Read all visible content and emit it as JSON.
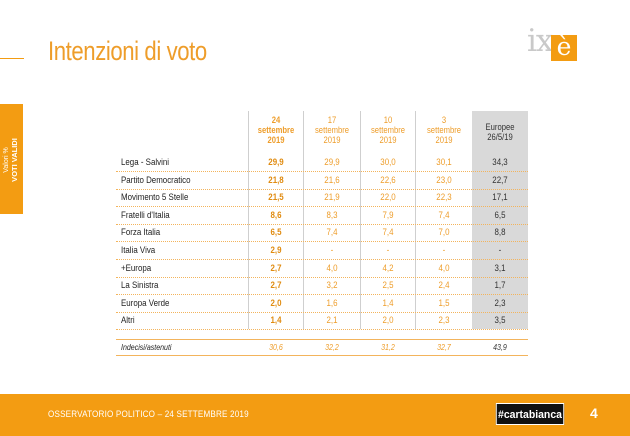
{
  "header": {
    "title": "Intenzioni di voto"
  },
  "logo": {
    "text": "ix",
    "box_letter": "è"
  },
  "side_tab": {
    "line1": "Valori %",
    "line2": "VOTI VALIDI"
  },
  "table": {
    "columns": [
      {
        "l1": "24",
        "l2": "settembre",
        "l3": "2019"
      },
      {
        "l1": "17",
        "l2": "settembre",
        "l3": "2019"
      },
      {
        "l1": "10",
        "l2": "settembre",
        "l3": "2019"
      },
      {
        "l1": "3",
        "l2": "settembre",
        "l3": "2019"
      },
      {
        "l1": "Europee",
        "l2": "26/5/19",
        "l3": ""
      }
    ],
    "rows": [
      {
        "label": "Lega - Salvini",
        "values": [
          "29,9",
          "29,9",
          "30,0",
          "30,1",
          "34,3"
        ]
      },
      {
        "label": "Partito Democratico",
        "values": [
          "21,8",
          "21,6",
          "22,6",
          "23,0",
          "22,7"
        ]
      },
      {
        "label": "Movimento 5 Stelle",
        "values": [
          "21,5",
          "21,9",
          "22,0",
          "22,3",
          "17,1"
        ]
      },
      {
        "label": "Fratelli d'Italia",
        "values": [
          "8,6",
          "8,3",
          "7,9",
          "7,4",
          "6,5"
        ]
      },
      {
        "label": "Forza Italia",
        "values": [
          "6,5",
          "7,4",
          "7,4",
          "7,0",
          "8,8"
        ]
      },
      {
        "label": "Italia Viva",
        "values": [
          "2,9",
          "-",
          "-",
          "-",
          "-"
        ]
      },
      {
        "label": "+Europa",
        "values": [
          "2,7",
          "4,0",
          "4,2",
          "4,0",
          "3,1"
        ]
      },
      {
        "label": "La Sinistra",
        "values": [
          "2,7",
          "3,2",
          "2,5",
          "2,4",
          "1,7"
        ]
      },
      {
        "label": "Europa Verde",
        "values": [
          "2,0",
          "1,6",
          "1,4",
          "1,5",
          "2,3"
        ]
      },
      {
        "label": "Altri",
        "values": [
          "1,4",
          "2,1",
          "2,0",
          "2,3",
          "3,5"
        ]
      }
    ],
    "indecisi": {
      "label": "Indecisi/astenuti",
      "values": [
        "30,6",
        "32,2",
        "31,2",
        "32,7",
        "43,9"
      ]
    }
  },
  "footer": {
    "text": "OSSERVATORIO POLITICO – 24 SETTEMBRE 2019",
    "brand": "#cartabianca",
    "page": "4"
  },
  "colors": {
    "accent": "#f39c12",
    "europe_bg": "#d9d9d9"
  }
}
